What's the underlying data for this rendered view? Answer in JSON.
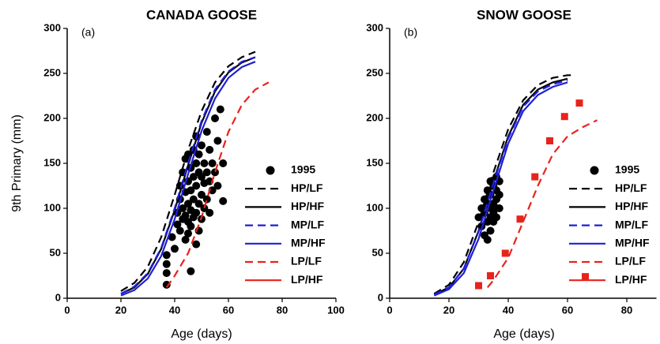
{
  "chart_data": [
    {
      "type": "line",
      "title": "CANADA GOOSE",
      "panel_label": "(a)",
      "y_label": "9th Primary (mm)",
      "x_label": "Age (days)",
      "xlim": [
        0,
        100
      ],
      "xticks": [
        0,
        20,
        40,
        60,
        80,
        100
      ],
      "ylim": [
        0,
        300
      ],
      "yticks": [
        0,
        50,
        100,
        150,
        200,
        250,
        300
      ],
      "legend": "right",
      "grid": false,
      "series": [
        {
          "name": "1995",
          "color": "#000000",
          "marker": "circle",
          "x": [
            37,
            37,
            37,
            37,
            39,
            40,
            41,
            41,
            42,
            42,
            42,
            43,
            43,
            43,
            44,
            44,
            44,
            44,
            45,
            45,
            45,
            45,
            45,
            46,
            46,
            46,
            46,
            46,
            47,
            47,
            47,
            47,
            48,
            48,
            48,
            48,
            48,
            49,
            49,
            49,
            49,
            50,
            50,
            50,
            50,
            51,
            51,
            51,
            52,
            52,
            52,
            53,
            53,
            53,
            54,
            54,
            55,
            55,
            56,
            56,
            57,
            58,
            58
          ],
          "values": [
            15,
            28,
            38,
            48,
            68,
            55,
            82,
            95,
            75,
            110,
            125,
            88,
            100,
            140,
            65,
            92,
            118,
            155,
            72,
            85,
            105,
            130,
            160,
            30,
            80,
            98,
            120,
            145,
            90,
            110,
            135,
            165,
            60,
            95,
            125,
            150,
            180,
            75,
            105,
            140,
            160,
            88,
            115,
            135,
            170,
            100,
            128,
            150,
            110,
            140,
            185,
            95,
            130,
            165,
            120,
            150,
            140,
            200,
            125,
            175,
            210,
            150,
            108
          ]
        },
        {
          "name": "HP/LF",
          "color": "#000000",
          "line_style": "dashed",
          "x": [
            20,
            25,
            30,
            35,
            40,
            45,
            50,
            55,
            60,
            65,
            70
          ],
          "values": [
            8,
            17,
            35,
            68,
            115,
            165,
            208,
            240,
            258,
            268,
            274
          ]
        },
        {
          "name": "HP/HF",
          "color": "#000000",
          "line_style": "solid",
          "x": [
            20,
            25,
            30,
            35,
            40,
            45,
            50,
            55,
            60,
            65,
            70
          ],
          "values": [
            5,
            12,
            27,
            55,
            98,
            148,
            195,
            230,
            251,
            262,
            268
          ]
        },
        {
          "name": "MP/LF",
          "color": "#1f1fd6",
          "line_style": "dashed",
          "x": [
            20,
            25,
            30,
            35,
            40,
            45,
            50,
            55,
            60,
            65,
            70
          ],
          "values": [
            5,
            13,
            28,
            56,
            100,
            150,
            197,
            232,
            252,
            263,
            268
          ]
        },
        {
          "name": "MP/HF",
          "color": "#1f1fd6",
          "line_style": "solid",
          "x": [
            20,
            25,
            30,
            35,
            40,
            45,
            50,
            55,
            60,
            65,
            70
          ],
          "values": [
            3,
            9,
            22,
            47,
            88,
            138,
            186,
            222,
            245,
            257,
            263
          ]
        },
        {
          "name": "LP/LF",
          "color": "#e8231c",
          "line_style": "dashed",
          "x": [
            37,
            40,
            45,
            50,
            55,
            60,
            65,
            70,
            75
          ],
          "values": [
            12,
            25,
            50,
            90,
            140,
            185,
            215,
            232,
            240
          ]
        },
        {
          "name": "LP/HF",
          "color": "#e8231c",
          "line_style": "solid",
          "x": [
            37
          ],
          "values": [
            null
          ]
        }
      ]
    },
    {
      "type": "line",
      "title": "SNOW GOOSE",
      "panel_label": "(b)",
      "x_label": "Age (days)",
      "xlim": [
        0,
        90
      ],
      "xticks": [
        0,
        20,
        40,
        60,
        80
      ],
      "ylim": [
        0,
        300
      ],
      "yticks": [
        0,
        50,
        100,
        150,
        200,
        250,
        300
      ],
      "legend": "right",
      "grid": false,
      "series": [
        {
          "name": "1995",
          "color": "#000000",
          "marker": "circle",
          "x": [
            30,
            31,
            31,
            32,
            32,
            32,
            33,
            33,
            33,
            33,
            34,
            34,
            34,
            34,
            34,
            35,
            35,
            35,
            35,
            36,
            36,
            36,
            36,
            37,
            37,
            37,
            36
          ],
          "values": [
            90,
            80,
            100,
            70,
            95,
            110,
            85,
            105,
            120,
            65,
            90,
            100,
            115,
            130,
            75,
            95,
            105,
            125,
            85,
            100,
            110,
            135,
            120,
            100,
            115,
            130,
            90
          ]
        },
        {
          "name": "HP/LF",
          "color": "#000000",
          "line_style": "dashed",
          "x": [
            15,
            20,
            25,
            30,
            35,
            40,
            45,
            50,
            55,
            60,
            62
          ],
          "values": [
            5,
            15,
            40,
            85,
            140,
            188,
            220,
            237,
            245,
            248,
            248
          ]
        },
        {
          "name": "HP/HF",
          "color": "#000000",
          "line_style": "solid",
          "x": [
            15,
            20,
            25,
            30,
            35,
            40,
            45,
            50,
            55,
            60
          ],
          "values": [
            4,
            12,
            33,
            75,
            130,
            180,
            215,
            232,
            240,
            244
          ]
        },
        {
          "name": "MP/LF",
          "color": "#1f1fd6",
          "line_style": "dashed",
          "x": [
            15,
            20,
            25,
            30,
            35,
            40,
            45,
            50,
            55,
            60
          ],
          "values": [
            4,
            12,
            33,
            74,
            128,
            178,
            213,
            230,
            238,
            242
          ]
        },
        {
          "name": "MP/HF",
          "color": "#1f1fd6",
          "line_style": "solid",
          "x": [
            15,
            20,
            25,
            30,
            35,
            40,
            45,
            50,
            55,
            60
          ],
          "values": [
            3,
            10,
            28,
            66,
            120,
            172,
            208,
            226,
            235,
            240
          ]
        },
        {
          "name": "LP/LF",
          "color": "#e8231c",
          "line_style": "dashed",
          "x": [
            33,
            35,
            40,
            45,
            50,
            55,
            60,
            65,
            70
          ],
          "values": [
            12,
            20,
            45,
            85,
            125,
            160,
            180,
            190,
            198
          ]
        },
        {
          "name": "LP/HF",
          "color": "#e8231c",
          "line_style": "solid",
          "x": [
            33
          ],
          "values": [
            null
          ]
        },
        {
          "color": "#e8231c",
          "marker": "square",
          "x": [
            30,
            34,
            39,
            44,
            49,
            54,
            59,
            64,
            66
          ],
          "values": [
            14,
            25,
            50,
            88,
            135,
            175,
            202,
            217,
            24
          ]
        }
      ]
    }
  ]
}
